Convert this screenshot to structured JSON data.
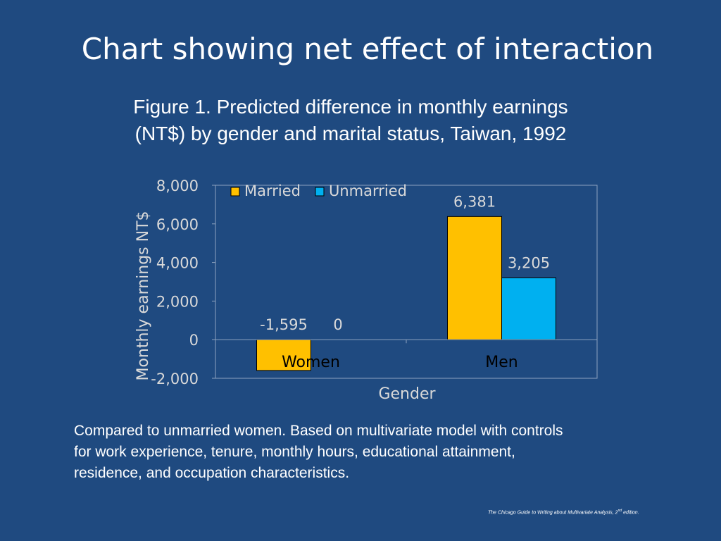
{
  "slide": {
    "title": "Chart showing net effect of interaction",
    "figure_caption_lines": [
      "Figure 1. Predicted difference in monthly earnings",
      "(NT$) by gender and marital status, Taiwan, 1992"
    ],
    "notes_lines": [
      "Compared to unmarried women. Based on multivariate model with controls",
      "for work experience, tenure, monthly hours, educational attainment,",
      "residence, and occupation characteristics."
    ],
    "citation": {
      "text_before": "The Chicago Guide to Writing about Multivariate Analysis, 2",
      "sup": "nd",
      "text_after": " edition."
    }
  },
  "colors": {
    "background": "#1f4a80",
    "married": "#ffc000",
    "unmarried": "#00b0f0",
    "plot_area": "#1f4a80",
    "text": "#ffffff",
    "axis_text": "#d9d9d9",
    "category_text": "#000000"
  },
  "chart_data": {
    "type": "bar",
    "categories": [
      "Women",
      "Men"
    ],
    "series": [
      {
        "name": "Married",
        "values": [
          -1595,
          6381
        ],
        "labels": [
          "-1,595",
          "6,381"
        ]
      },
      {
        "name": "Unmarried",
        "values": [
          0,
          3205
        ],
        "labels": [
          "0",
          "3,205"
        ]
      }
    ],
    "xlabel": "Gender",
    "ylabel": "Monthly earnings NT$",
    "ylim": [
      -2000,
      8000
    ],
    "yticks": [
      -2000,
      0,
      2000,
      4000,
      6000,
      8000
    ],
    "ytick_labels": [
      "-2,000",
      "0",
      "2,000",
      "4,000",
      "6,000",
      "8,000"
    ],
    "legend": "top-left",
    "grid": false
  }
}
